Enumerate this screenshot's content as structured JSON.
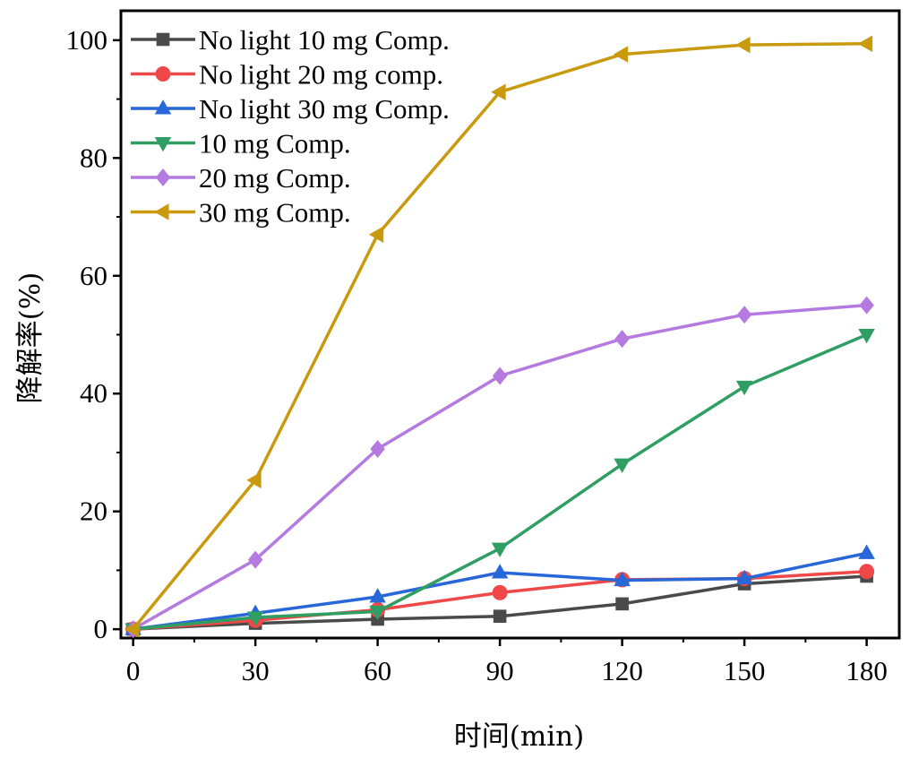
{
  "chart_data": {
    "type": "line",
    "title": "",
    "xlabel": "时间(min)",
    "ylabel": "降解率(%)",
    "x": [
      0,
      30,
      60,
      90,
      120,
      150,
      180
    ],
    "xlim": [
      -3,
      188
    ],
    "ylim": [
      -1.5,
      105
    ],
    "xticks": [
      "0",
      "30",
      "60",
      "90",
      "120",
      "150",
      "180"
    ],
    "yticks": [
      "0",
      "20",
      "40",
      "60",
      "80",
      "100"
    ],
    "legend_position": "top-left",
    "grid": false,
    "series": [
      {
        "name": "No light 10 mg Comp.",
        "color": "#4a4a4a",
        "marker": "square",
        "values": [
          0,
          1.0,
          1.7,
          2.2,
          4.3,
          7.7,
          9.0
        ]
      },
      {
        "name": "No light 20 mg comp.",
        "color": "#f04848",
        "marker": "circle",
        "values": [
          0,
          1.5,
          3.3,
          6.2,
          8.4,
          8.6,
          9.8
        ]
      },
      {
        "name": "No light 30 mg Comp.",
        "color": "#2767d8",
        "marker": "triangle-up",
        "values": [
          0,
          2.7,
          5.5,
          9.6,
          8.3,
          8.6,
          12.9
        ]
      },
      {
        "name": "10 mg Comp.",
        "color": "#2e9e62",
        "marker": "triangle-down",
        "values": [
          0,
          2.0,
          3.0,
          13.7,
          28.0,
          41.2,
          50.0
        ]
      },
      {
        "name": "20 mg Comp.",
        "color": "#b47ae0",
        "marker": "diamond",
        "values": [
          0,
          11.8,
          30.6,
          43.0,
          49.3,
          53.4,
          55.0
        ]
      },
      {
        "name": "30 mg Comp.",
        "color": "#c99a0e",
        "marker": "triangle-left",
        "values": [
          0,
          25.3,
          67.0,
          91.2,
          97.6,
          99.2,
          99.4
        ]
      }
    ]
  }
}
